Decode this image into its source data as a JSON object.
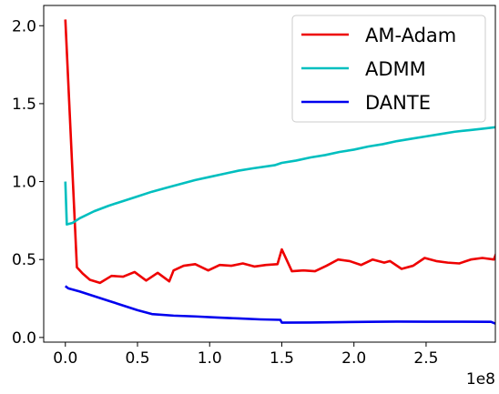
{
  "chart_data": {
    "type": "line",
    "title": "",
    "xlabel": "",
    "ylabel": "",
    "x_offset_label": "1e8",
    "xlim": [
      -0.15,
      2.98
    ],
    "ylim": [
      -0.03,
      2.13
    ],
    "xticks": [
      {
        "value": 0.0,
        "label": "0.0"
      },
      {
        "value": 0.5,
        "label": "0.5"
      },
      {
        "value": 1.0,
        "label": "1.0"
      },
      {
        "value": 1.5,
        "label": "1.5"
      },
      {
        "value": 2.0,
        "label": "2.0"
      },
      {
        "value": 2.5,
        "label": "2.5"
      }
    ],
    "yticks": [
      {
        "value": 0.0,
        "label": "0.0"
      },
      {
        "value": 0.5,
        "label": "0.5"
      },
      {
        "value": 1.0,
        "label": "1.0"
      },
      {
        "value": 1.5,
        "label": "1.5"
      },
      {
        "value": 2.0,
        "label": "2.0"
      }
    ],
    "legend_position": "top-right",
    "grid": false,
    "series": [
      {
        "name": "AM-Adam",
        "color": "#ee0000",
        "points": [
          [
            0.0,
            2.04
          ],
          [
            0.08,
            0.45
          ],
          [
            0.12,
            0.41
          ],
          [
            0.17,
            0.37
          ],
          [
            0.24,
            0.35
          ],
          [
            0.32,
            0.395
          ],
          [
            0.4,
            0.39
          ],
          [
            0.48,
            0.42
          ],
          [
            0.56,
            0.365
          ],
          [
            0.64,
            0.415
          ],
          [
            0.72,
            0.36
          ],
          [
            0.75,
            0.43
          ],
          [
            0.82,
            0.46
          ],
          [
            0.9,
            0.47
          ],
          [
            0.99,
            0.43
          ],
          [
            1.07,
            0.465
          ],
          [
            1.15,
            0.46
          ],
          [
            1.23,
            0.475
          ],
          [
            1.31,
            0.455
          ],
          [
            1.39,
            0.465
          ],
          [
            1.47,
            0.47
          ],
          [
            1.5,
            0.565
          ],
          [
            1.57,
            0.425
          ],
          [
            1.65,
            0.43
          ],
          [
            1.73,
            0.425
          ],
          [
            1.81,
            0.46
          ],
          [
            1.89,
            0.5
          ],
          [
            1.97,
            0.49
          ],
          [
            2.05,
            0.465
          ],
          [
            2.13,
            0.5
          ],
          [
            2.21,
            0.48
          ],
          [
            2.25,
            0.49
          ],
          [
            2.33,
            0.44
          ],
          [
            2.41,
            0.46
          ],
          [
            2.49,
            0.51
          ],
          [
            2.57,
            0.49
          ],
          [
            2.65,
            0.48
          ],
          [
            2.73,
            0.475
          ],
          [
            2.81,
            0.5
          ],
          [
            2.89,
            0.51
          ],
          [
            2.97,
            0.5
          ],
          [
            2.99,
            0.55
          ]
        ]
      },
      {
        "name": "ADMM",
        "color": "#00bfbf",
        "points": [
          [
            0.0,
            1.0
          ],
          [
            0.01,
            0.725
          ],
          [
            0.05,
            0.735
          ],
          [
            0.1,
            0.765
          ],
          [
            0.2,
            0.81
          ],
          [
            0.3,
            0.845
          ],
          [
            0.4,
            0.875
          ],
          [
            0.5,
            0.905
          ],
          [
            0.6,
            0.935
          ],
          [
            0.7,
            0.96
          ],
          [
            0.8,
            0.985
          ],
          [
            0.9,
            1.01
          ],
          [
            1.0,
            1.03
          ],
          [
            1.1,
            1.05
          ],
          [
            1.2,
            1.07
          ],
          [
            1.3,
            1.085
          ],
          [
            1.45,
            1.105
          ],
          [
            1.5,
            1.12
          ],
          [
            1.6,
            1.135
          ],
          [
            1.7,
            1.155
          ],
          [
            1.8,
            1.17
          ],
          [
            1.9,
            1.19
          ],
          [
            2.0,
            1.205
          ],
          [
            2.1,
            1.225
          ],
          [
            2.2,
            1.24
          ],
          [
            2.3,
            1.26
          ],
          [
            2.4,
            1.275
          ],
          [
            2.5,
            1.29
          ],
          [
            2.6,
            1.305
          ],
          [
            2.7,
            1.32
          ],
          [
            2.8,
            1.33
          ],
          [
            2.9,
            1.34
          ],
          [
            2.99,
            1.35
          ]
        ]
      },
      {
        "name": "DANTE",
        "color": "#0000ee",
        "points": [
          [
            0.0,
            0.33
          ],
          [
            0.02,
            0.315
          ],
          [
            0.1,
            0.295
          ],
          [
            0.2,
            0.265
          ],
          [
            0.3,
            0.235
          ],
          [
            0.4,
            0.205
          ],
          [
            0.5,
            0.175
          ],
          [
            0.6,
            0.15
          ],
          [
            0.75,
            0.14
          ],
          [
            0.9,
            0.135
          ],
          [
            1.05,
            0.128
          ],
          [
            1.2,
            0.122
          ],
          [
            1.35,
            0.116
          ],
          [
            1.49,
            0.113
          ],
          [
            1.5,
            0.095
          ],
          [
            1.7,
            0.096
          ],
          [
            1.9,
            0.098
          ],
          [
            2.1,
            0.1
          ],
          [
            2.3,
            0.102
          ],
          [
            2.5,
            0.101
          ],
          [
            2.7,
            0.101
          ],
          [
            2.95,
            0.1
          ],
          [
            2.99,
            0.085
          ]
        ]
      }
    ]
  }
}
